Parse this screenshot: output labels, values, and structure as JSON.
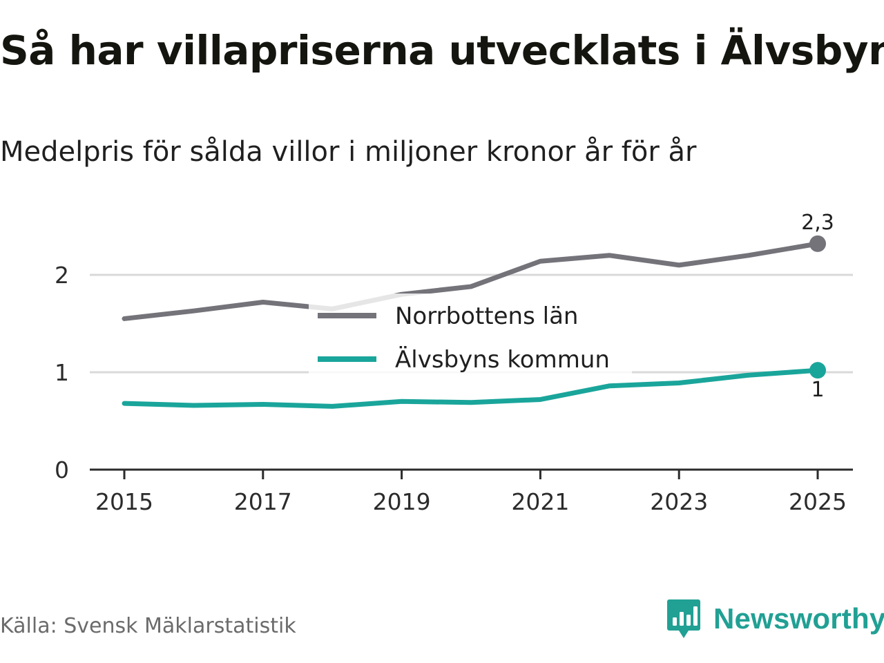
{
  "title": "Så har villapriserna utvecklats i Älvsbyn",
  "subtitle": "Medelpris för sålda villor i miljoner kronor år för år",
  "source": "Källa: Svensk Mäklarstatistik",
  "brand": {
    "name": "Newsworthy",
    "icon": "newsworthy-logo-icon",
    "color": "#21a094"
  },
  "colors": {
    "norrbotten": "#74737a",
    "alvsbyn": "#1aa59b",
    "grid": "#d9d9d9",
    "axis": "#2b2b2b"
  },
  "chart_data": {
    "type": "line",
    "title": "Så har villapriserna utvecklats i Älvsbyn",
    "subtitle": "Medelpris för sålda villor i miljoner kronor år för år",
    "xlabel": "",
    "ylabel": "",
    "x": [
      2015,
      2016,
      2017,
      2018,
      2019,
      2020,
      2021,
      2022,
      2023,
      2024,
      2025
    ],
    "x_ticks": [
      "2015",
      "2017",
      "2019",
      "2021",
      "2023",
      "2025"
    ],
    "y_ticks": [
      "0",
      "1",
      "2"
    ],
    "ylim": [
      0,
      2.5
    ],
    "grid": true,
    "legend_position": "center",
    "series": [
      {
        "name": "Norrbottens län",
        "color": "#74737a",
        "values": [
          1.55,
          1.63,
          1.72,
          1.65,
          1.8,
          1.88,
          2.14,
          2.2,
          2.1,
          2.2,
          2.32
        ],
        "end_label": "2,3"
      },
      {
        "name": "Älvsbyns kommun",
        "color": "#1aa59b",
        "values": [
          0.68,
          0.66,
          0.67,
          0.65,
          0.7,
          0.69,
          0.72,
          0.86,
          0.89,
          0.97,
          1.02
        ],
        "end_label": "1"
      }
    ]
  }
}
